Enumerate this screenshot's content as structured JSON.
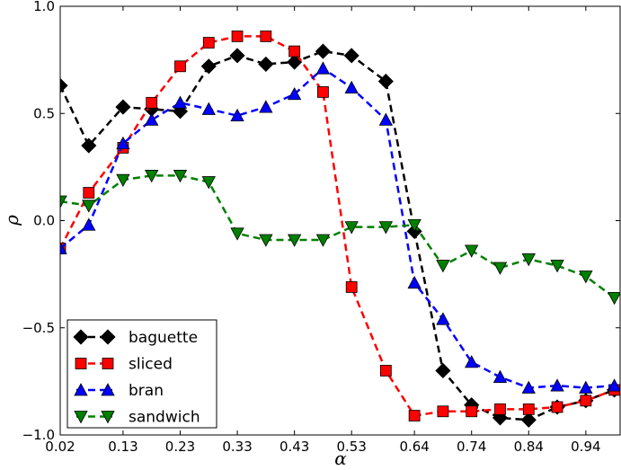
{
  "chart_data": {
    "type": "line",
    "xlabel": "α",
    "ylabel": "ρ",
    "xlim": [
      0.02,
      1.0
    ],
    "ylim": [
      -1.0,
      1.0
    ],
    "xticks": [
      "0.02",
      "0.13",
      "0.23",
      "0.33",
      "0.43",
      "0.53",
      "0.64",
      "0.74",
      "0.84",
      "0.94"
    ],
    "yticks": [
      "1.0",
      "0.5",
      "0.0",
      "−0.5",
      "−1.0"
    ],
    "x": [
      0.02,
      0.07,
      0.13,
      0.18,
      0.23,
      0.28,
      0.33,
      0.38,
      0.43,
      0.48,
      0.53,
      0.59,
      0.64,
      0.69,
      0.74,
      0.79,
      0.84,
      0.89,
      0.94,
      0.99
    ],
    "legend_position": "lower-left",
    "grid": false,
    "series": [
      {
        "name": "baguette",
        "color": "#000000",
        "marker": "diamond",
        "values": [
          0.63,
          0.35,
          0.53,
          0.52,
          0.51,
          0.72,
          0.77,
          0.73,
          0.74,
          0.79,
          0.77,
          0.65,
          -0.05,
          -0.7,
          -0.86,
          -0.92,
          -0.93,
          -0.87,
          -0.84,
          -0.79
        ]
      },
      {
        "name": "sliced",
        "color": "#ff0000",
        "marker": "square",
        "values": [
          -0.13,
          0.13,
          0.34,
          0.55,
          0.72,
          0.83,
          0.86,
          0.86,
          0.79,
          0.6,
          -0.31,
          -0.7,
          -0.91,
          -0.89,
          -0.89,
          -0.88,
          -0.88,
          -0.87,
          -0.84,
          -0.79
        ]
      },
      {
        "name": "bran",
        "color": "#0000ff",
        "marker": "triangle-up",
        "values": [
          -0.13,
          -0.02,
          0.36,
          0.47,
          0.55,
          0.52,
          0.49,
          0.53,
          0.59,
          0.71,
          0.62,
          0.47,
          -0.29,
          -0.46,
          -0.66,
          -0.73,
          -0.78,
          -0.77,
          -0.78,
          -0.77
        ]
      },
      {
        "name": "sandwich",
        "color": "#008000",
        "marker": "triangle-down",
        "values": [
          0.09,
          0.07,
          0.19,
          0.21,
          0.21,
          0.18,
          -0.06,
          -0.09,
          -0.09,
          -0.09,
          -0.03,
          -0.03,
          -0.02,
          -0.21,
          -0.14,
          -0.22,
          -0.18,
          -0.21,
          -0.26,
          -0.36
        ]
      }
    ]
  }
}
